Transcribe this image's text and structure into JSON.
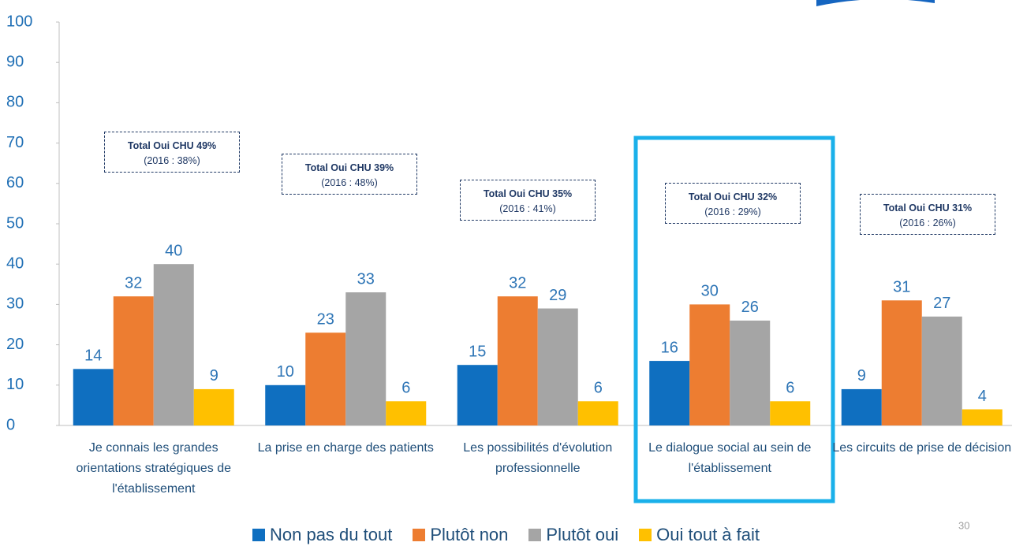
{
  "chart_data": {
    "type": "bar",
    "categories": [
      "Je connais les grandes orientations stratégiques de l'établissement",
      "La prise en charge des patients",
      "Les possibilités d'évolution professionnelle",
      "Le dialogue social au sein de l'établissement",
      "Les circuits de prise de décision"
    ],
    "series": [
      {
        "name": "Non pas du tout",
        "color": "#0f6fc0",
        "values": [
          14,
          10,
          15,
          16,
          9
        ]
      },
      {
        "name": "Plutôt non",
        "color": "#ed7d31",
        "values": [
          32,
          23,
          32,
          30,
          31
        ]
      },
      {
        "name": "Plutôt oui",
        "color": "#a5a5a5",
        "values": [
          40,
          33,
          29,
          26,
          27
        ]
      },
      {
        "name": "Oui tout à fait",
        "color": "#ffc000",
        "values": [
          9,
          6,
          6,
          6,
          4
        ]
      }
    ],
    "ylim": [
      0,
      100
    ],
    "yticks": [
      0,
      10,
      20,
      30,
      40,
      50,
      60,
      70,
      80,
      90,
      100
    ],
    "grid": false,
    "annotations": [
      {
        "title": "Total Oui CHU 49%",
        "note": "(2016 : 38%)"
      },
      {
        "title": "Total Oui CHU 39%",
        "note": "(2016 : 48%)"
      },
      {
        "title": "Total Oui CHU 35%",
        "note": "(2016 : 41%)"
      },
      {
        "title": "Total Oui CHU 32%",
        "note": "(2016 : 29%)"
      },
      {
        "title": "Total Oui CHU 31%",
        "note": "(2016 : 26%)"
      }
    ],
    "legend": "bottom",
    "page_number": "30"
  }
}
